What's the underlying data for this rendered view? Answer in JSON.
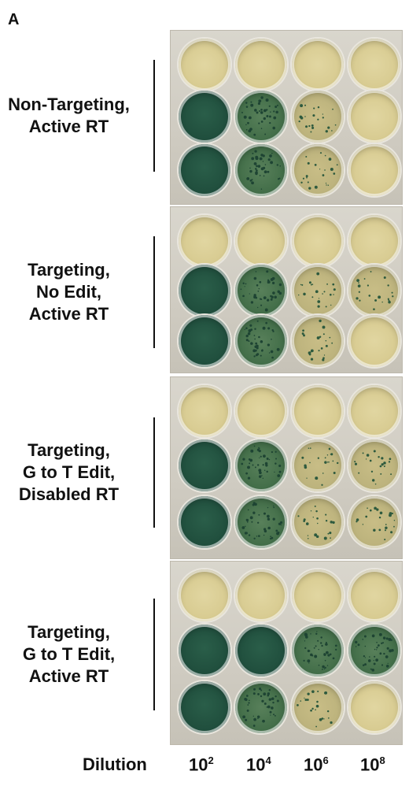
{
  "panel_letter": "A",
  "groups": [
    {
      "label_lines": [
        "Non-Targeting,",
        "Active RT"
      ]
    },
    {
      "label_lines": [
        "Targeting,",
        "No Edit,",
        "Active RT"
      ]
    },
    {
      "label_lines": [
        "Targeting,",
        "G to T Edit,",
        "Disabled RT"
      ]
    },
    {
      "label_lines": [
        "Targeting,",
        "G to T Edit,",
        "Active RT"
      ]
    }
  ],
  "dilution_label": "Dilution",
  "dilutions": [
    {
      "base": "10",
      "exp": "2"
    },
    {
      "base": "10",
      "exp": "4"
    },
    {
      "base": "10",
      "exp": "6"
    },
    {
      "base": "10",
      "exp": "8"
    }
  ],
  "colors": {
    "clear_well": "#d6c98e",
    "dark_green": "#1f4d3c",
    "mid_green": "#3e6a45",
    "speckled": "#b9b07a",
    "spot": "#2e5a3e"
  }
}
